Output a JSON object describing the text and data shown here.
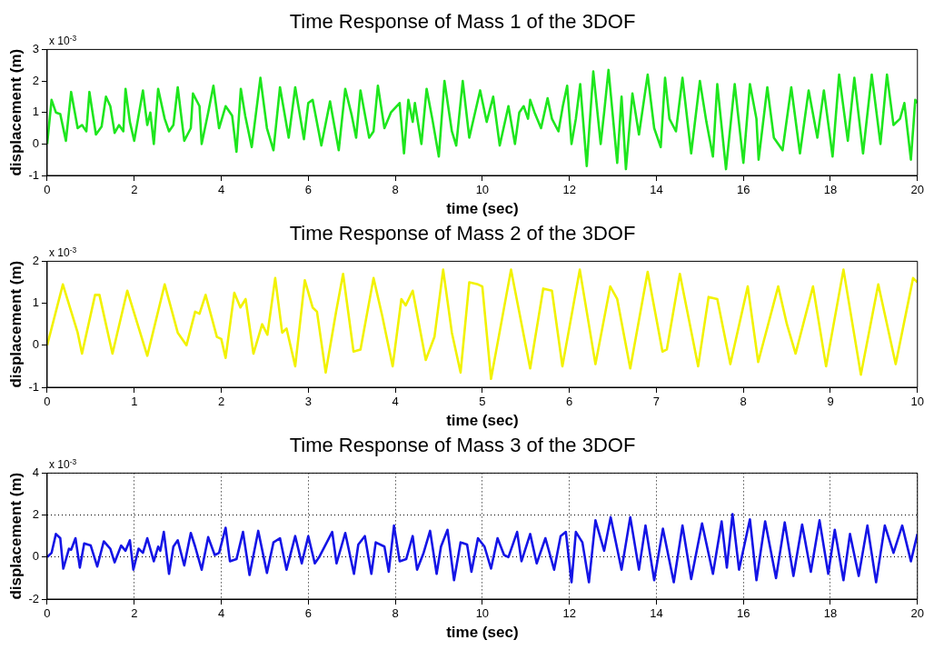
{
  "chart_data": [
    {
      "type": "line",
      "title": "Time Response of Mass 1 of the 3DOF",
      "xlabel": "time (sec)",
      "ylabel": "displacement (m)",
      "annotations": [
        "x 10$^{-3}$"
      ],
      "xlim": [
        0,
        20
      ],
      "ylim": [
        -1,
        3
      ],
      "xticks": [
        0,
        2,
        4,
        6,
        8,
        10,
        12,
        14,
        16,
        18,
        20
      ],
      "yticks": [
        -1,
        0,
        1,
        2,
        3
      ],
      "grid": false,
      "x": [
        0,
        0.1,
        0.2,
        0.3,
        0.43,
        0.55,
        0.7,
        0.8,
        0.9,
        0.97,
        1.12,
        1.25,
        1.35,
        1.45,
        1.55,
        1.65,
        1.75,
        1.8,
        1.9,
        2.0,
        2.2,
        2.3,
        2.37,
        2.45,
        2.55,
        2.7,
        2.8,
        2.9,
        3.0,
        3.15,
        3.3,
        3.35,
        3.5,
        3.55,
        3.7,
        3.82,
        3.95,
        4.1,
        4.25,
        4.35,
        4.45,
        4.55,
        4.7,
        4.9,
        5.05,
        5.2,
        5.35,
        5.55,
        5.7,
        5.9,
        6.0,
        6.1,
        6.3,
        6.5,
        6.7,
        6.85,
        7.0,
        7.1,
        7.2,
        7.4,
        7.5,
        7.6,
        7.75,
        7.9,
        8.1,
        8.2,
        8.3,
        8.4,
        8.45,
        8.6,
        8.72,
        8.85,
        9.0,
        9.13,
        9.3,
        9.4,
        9.55,
        9.7,
        9.95,
        10.1,
        10.25,
        10.4,
        10.6,
        10.75,
        10.85,
        10.95,
        11.05,
        11.1,
        11.2,
        11.35,
        11.5,
        11.6,
        11.75,
        11.85,
        11.95,
        12.05,
        12.15,
        12.25,
        12.4,
        12.55,
        12.72,
        12.8,
        12.9,
        13.1,
        13.2,
        13.3,
        13.45,
        13.6,
        13.8,
        13.95,
        14.1,
        14.2,
        14.3,
        14.45,
        14.6,
        14.8,
        15.0,
        15.15,
        15.3,
        15.4,
        15.6,
        15.8,
        16.0,
        16.15,
        16.3,
        16.35,
        16.55,
        16.7,
        16.9,
        17.1,
        17.3,
        17.5,
        17.7,
        17.85,
        18.05,
        18.2,
        18.4,
        18.55,
        18.75,
        18.95,
        19.15,
        19.3,
        19.45,
        19.6,
        19.7,
        19.85,
        19.95,
        20.0
      ],
      "series": [
        {
          "color": "#1ee61e",
          "values": [
            0,
            1.4,
            1.0,
            0.95,
            0.1,
            1.65,
            0.5,
            0.6,
            0.4,
            1.65,
            0.3,
            0.55,
            1.5,
            1.2,
            0.35,
            0.6,
            0.4,
            1.75,
            0.7,
            0.1,
            1.7,
            0.6,
            1.0,
            0.0,
            1.75,
            0.8,
            0.4,
            0.6,
            1.8,
            0.1,
            0.5,
            1.6,
            1.2,
            0.0,
            1.0,
            1.85,
            0.5,
            1.2,
            0.9,
            -0.25,
            1.75,
            0.9,
            -0.1,
            2.1,
            0.5,
            -0.2,
            1.8,
            0.2,
            1.8,
            0.15,
            1.3,
            1.4,
            -0.05,
            1.35,
            -0.2,
            1.75,
            0.9,
            0.2,
            1.7,
            0.2,
            0.4,
            1.85,
            0.5,
            1.0,
            1.3,
            -0.3,
            1.4,
            0.7,
            1.3,
            0.0,
            1.75,
            0.8,
            -0.4,
            2.0,
            0.4,
            -0.05,
            2.0,
            0.2,
            1.7,
            0.7,
            1.5,
            -0.05,
            1.2,
            0.0,
            1.0,
            1.2,
            0.8,
            1.4,
            1.0,
            0.5,
            1.45,
            0.8,
            0.4,
            1.2,
            1.85,
            0.0,
            0.8,
            1.9,
            -0.7,
            2.3,
            0.0,
            1.0,
            2.35,
            -0.6,
            1.5,
            -0.8,
            1.6,
            0.3,
            2.2,
            0.5,
            -0.1,
            2.1,
            0.8,
            0.4,
            2.1,
            -0.3,
            2.0,
            0.7,
            -0.4,
            1.9,
            -0.8,
            1.9,
            -0.6,
            1.9,
            0.8,
            -0.5,
            1.8,
            0.2,
            -0.2,
            1.8,
            -0.3,
            1.7,
            0.2,
            1.7,
            -0.4,
            2.2,
            0.1,
            2.1,
            -0.3,
            2.2,
            0.0,
            2.2,
            0.6,
            0.8,
            1.3,
            -0.5,
            1.4,
            1.3
          ]
        }
      ]
    },
    {
      "type": "line",
      "title": "Time Response of Mass 2 of the 3DOF",
      "xlabel": "time (sec)",
      "ylabel": "displacement (m)",
      "annotations": [
        "x 10$^{-3}$"
      ],
      "xlim": [
        0,
        10
      ],
      "ylim": [
        -1,
        2
      ],
      "xticks": [
        0,
        1,
        2,
        3,
        4,
        5,
        6,
        7,
        8,
        9,
        10
      ],
      "yticks": [
        -1,
        0,
        1,
        2
      ],
      "grid": false,
      "x": [
        0,
        0.18,
        0.35,
        0.4,
        0.55,
        0.6,
        0.75,
        0.92,
        1.15,
        1.35,
        1.5,
        1.6,
        1.7,
        1.75,
        1.82,
        1.95,
        2.0,
        2.05,
        2.15,
        2.22,
        2.28,
        2.37,
        2.47,
        2.53,
        2.62,
        2.7,
        2.75,
        2.85,
        2.96,
        3.05,
        3.1,
        3.2,
        3.32,
        3.4,
        3.52,
        3.6,
        3.75,
        3.85,
        3.97,
        4.07,
        4.12,
        4.2,
        4.35,
        4.45,
        4.55,
        4.65,
        4.75,
        4.85,
        4.95,
        5.0,
        5.1,
        5.33,
        5.55,
        5.7,
        5.8,
        5.92,
        6.12,
        6.3,
        6.47,
        6.55,
        6.7,
        6.9,
        7.07,
        7.12,
        7.27,
        7.48,
        7.6,
        7.7,
        7.85,
        8.05,
        8.17,
        8.4,
        8.5,
        8.6,
        8.8,
        8.95,
        9.15,
        9.35,
        9.55,
        9.75,
        9.95,
        10
      ],
      "series": [
        {
          "color": "#f2f200",
          "values": [
            0,
            1.45,
            0.3,
            -0.2,
            1.2,
            1.2,
            -0.2,
            1.3,
            -0.25,
            1.45,
            0.3,
            0.0,
            0.8,
            0.75,
            1.2,
            0.2,
            0.15,
            -0.3,
            1.25,
            0.9,
            1.1,
            -0.2,
            0.5,
            0.25,
            1.6,
            0.3,
            0.4,
            -0.5,
            1.55,
            0.9,
            0.8,
            -0.65,
            0.8,
            1.7,
            -0.15,
            -0.1,
            1.6,
            0.7,
            -0.5,
            1.1,
            0.95,
            1.3,
            -0.35,
            0.2,
            1.8,
            0.3,
            -0.65,
            1.5,
            1.45,
            1.4,
            -0.8,
            1.8,
            -0.55,
            1.35,
            1.3,
            -0.5,
            1.8,
            -0.45,
            1.4,
            1.1,
            -0.55,
            1.75,
            -0.15,
            -0.1,
            1.7,
            -0.5,
            1.15,
            1.1,
            -0.45,
            1.4,
            -0.4,
            1.4,
            0.5,
            -0.2,
            1.4,
            -0.5,
            1.8,
            -0.7,
            1.45,
            -0.45,
            1.6,
            1.5
          ]
        }
      ]
    },
    {
      "type": "line",
      "title": "Time Response of Mass 3 of the 3DOF",
      "xlabel": "time (sec)",
      "ylabel": "displacement (m)",
      "annotations": [
        "x 10$^{-3}$"
      ],
      "xlim": [
        0,
        20
      ],
      "ylim": [
        -2,
        4
      ],
      "xticks": [
        0,
        2,
        4,
        6,
        8,
        10,
        12,
        14,
        16,
        18,
        20
      ],
      "yticks": [
        -2,
        0,
        2,
        4
      ],
      "grid": true,
      "x": [
        0,
        0.1,
        0.2,
        0.3,
        0.37,
        0.5,
        0.55,
        0.65,
        0.75,
        0.85,
        1.0,
        1.15,
        1.3,
        1.45,
        1.55,
        1.7,
        1.8,
        1.9,
        1.98,
        2.1,
        2.2,
        2.3,
        2.45,
        2.55,
        2.6,
        2.68,
        2.8,
        2.9,
        3.0,
        3.15,
        3.3,
        3.4,
        3.55,
        3.7,
        3.85,
        3.95,
        4.1,
        4.2,
        4.35,
        4.5,
        4.65,
        4.85,
        5.05,
        5.2,
        5.35,
        5.5,
        5.7,
        5.85,
        6.0,
        6.15,
        6.25,
        6.55,
        6.65,
        6.85,
        7.05,
        7.15,
        7.3,
        7.45,
        7.55,
        7.75,
        7.85,
        7.97,
        8.1,
        8.25,
        8.4,
        8.5,
        8.65,
        8.8,
        8.95,
        9.05,
        9.2,
        9.35,
        9.5,
        9.65,
        9.75,
        9.9,
        10.05,
        10.2,
        10.35,
        10.5,
        10.6,
        10.8,
        10.9,
        11.1,
        11.25,
        11.45,
        11.65,
        11.8,
        11.92,
        12.05,
        12.15,
        12.3,
        12.45,
        12.6,
        12.8,
        12.95,
        13.2,
        13.4,
        13.6,
        13.75,
        13.95,
        14.15,
        14.4,
        14.6,
        14.8,
        15.05,
        15.3,
        15.5,
        15.62,
        15.75,
        15.9,
        16.15,
        16.3,
        16.5,
        16.75,
        16.95,
        17.15,
        17.35,
        17.55,
        17.75,
        17.95,
        18.1,
        18.3,
        18.45,
        18.65,
        18.85,
        19.05,
        19.25,
        19.45,
        19.65,
        19.85,
        20
      ],
      "series": [
        {
          "color": "#1414e6",
          "values": [
            0,
            0.2,
            1.1,
            0.9,
            -0.55,
            0.4,
            0.35,
            0.9,
            -0.5,
            0.65,
            0.55,
            -0.45,
            0.75,
            0.4,
            -0.25,
            0.55,
            0.3,
            0.8,
            -0.6,
            0.4,
            0.2,
            0.9,
            -0.2,
            0.5,
            0.3,
            1.2,
            -0.8,
            0.5,
            0.8,
            -0.4,
            1.15,
            0.5,
            -0.6,
            0.95,
            0.1,
            0.2,
            1.4,
            -0.2,
            -0.1,
            1.2,
            -0.85,
            1.25,
            -0.75,
            0.7,
            0.9,
            -0.6,
            1.0,
            -0.3,
            1.0,
            -0.3,
            0.0,
            1.2,
            -0.3,
            1.15,
            -0.8,
            0.6,
            1.0,
            -0.8,
            0.7,
            0.5,
            -0.7,
            1.5,
            -0.2,
            -0.1,
            1.0,
            -0.6,
            0.2,
            1.25,
            -0.8,
            0.5,
            1.3,
            -1.1,
            0.7,
            0.6,
            -0.7,
            0.9,
            0.5,
            -0.55,
            0.9,
            0.1,
            0.0,
            1.2,
            -0.2,
            1.1,
            -0.3,
            0.9,
            -0.6,
            1.0,
            1.2,
            -1.2,
            1.2,
            0.7,
            -1.2,
            1.75,
            0.3,
            1.9,
            -0.6,
            1.9,
            -0.6,
            1.5,
            -1.1,
            1.35,
            -1.2,
            1.5,
            -1.05,
            1.6,
            -0.8,
            1.7,
            -0.5,
            2.05,
            -0.6,
            1.8,
            -1.1,
            1.7,
            -1.0,
            1.65,
            -0.9,
            1.55,
            -0.7,
            1.75,
            -0.8,
            1.3,
            -1.1,
            1.1,
            -0.9,
            1.5,
            -1.2,
            1.5,
            0.2,
            1.5,
            -0.2,
            1.1
          ]
        }
      ]
    }
  ]
}
